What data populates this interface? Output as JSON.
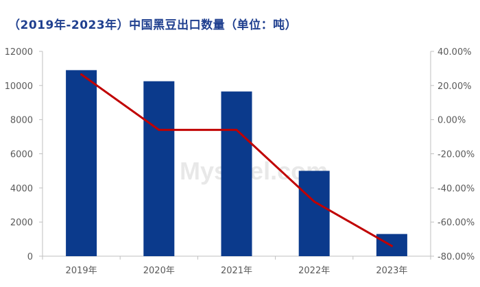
{
  "chart_data": {
    "type": "bar",
    "title": "（2019年-2023年）中国黑豆出口数量（单位：吨）",
    "categories": [
      "2019年",
      "2020年",
      "2021年",
      "2022年",
      "2023年"
    ],
    "series": [
      {
        "type": "bar",
        "axis": "left",
        "color": "#0b3a8c",
        "values": [
          10900,
          10250,
          9650,
          5000,
          1300
        ]
      },
      {
        "type": "line",
        "axis": "right",
        "color": "#c00000",
        "values": [
          26.5,
          -6.0,
          -6.0,
          -48.0,
          -74.0
        ]
      }
    ],
    "ylim_left": [
      0,
      12000
    ],
    "yticks_left": [
      "12000",
      "10000",
      "8000",
      "6000",
      "4000",
      "2000",
      "0"
    ],
    "ylim_right": [
      -80,
      40
    ],
    "yticks_right": [
      "40.00%",
      "20.00%",
      "0.00%",
      "-20.00%",
      "-40.00%",
      "-60.00%",
      "-80.00%"
    ],
    "grid": false,
    "legend": "none"
  },
  "watermark": "Mysteel.com"
}
